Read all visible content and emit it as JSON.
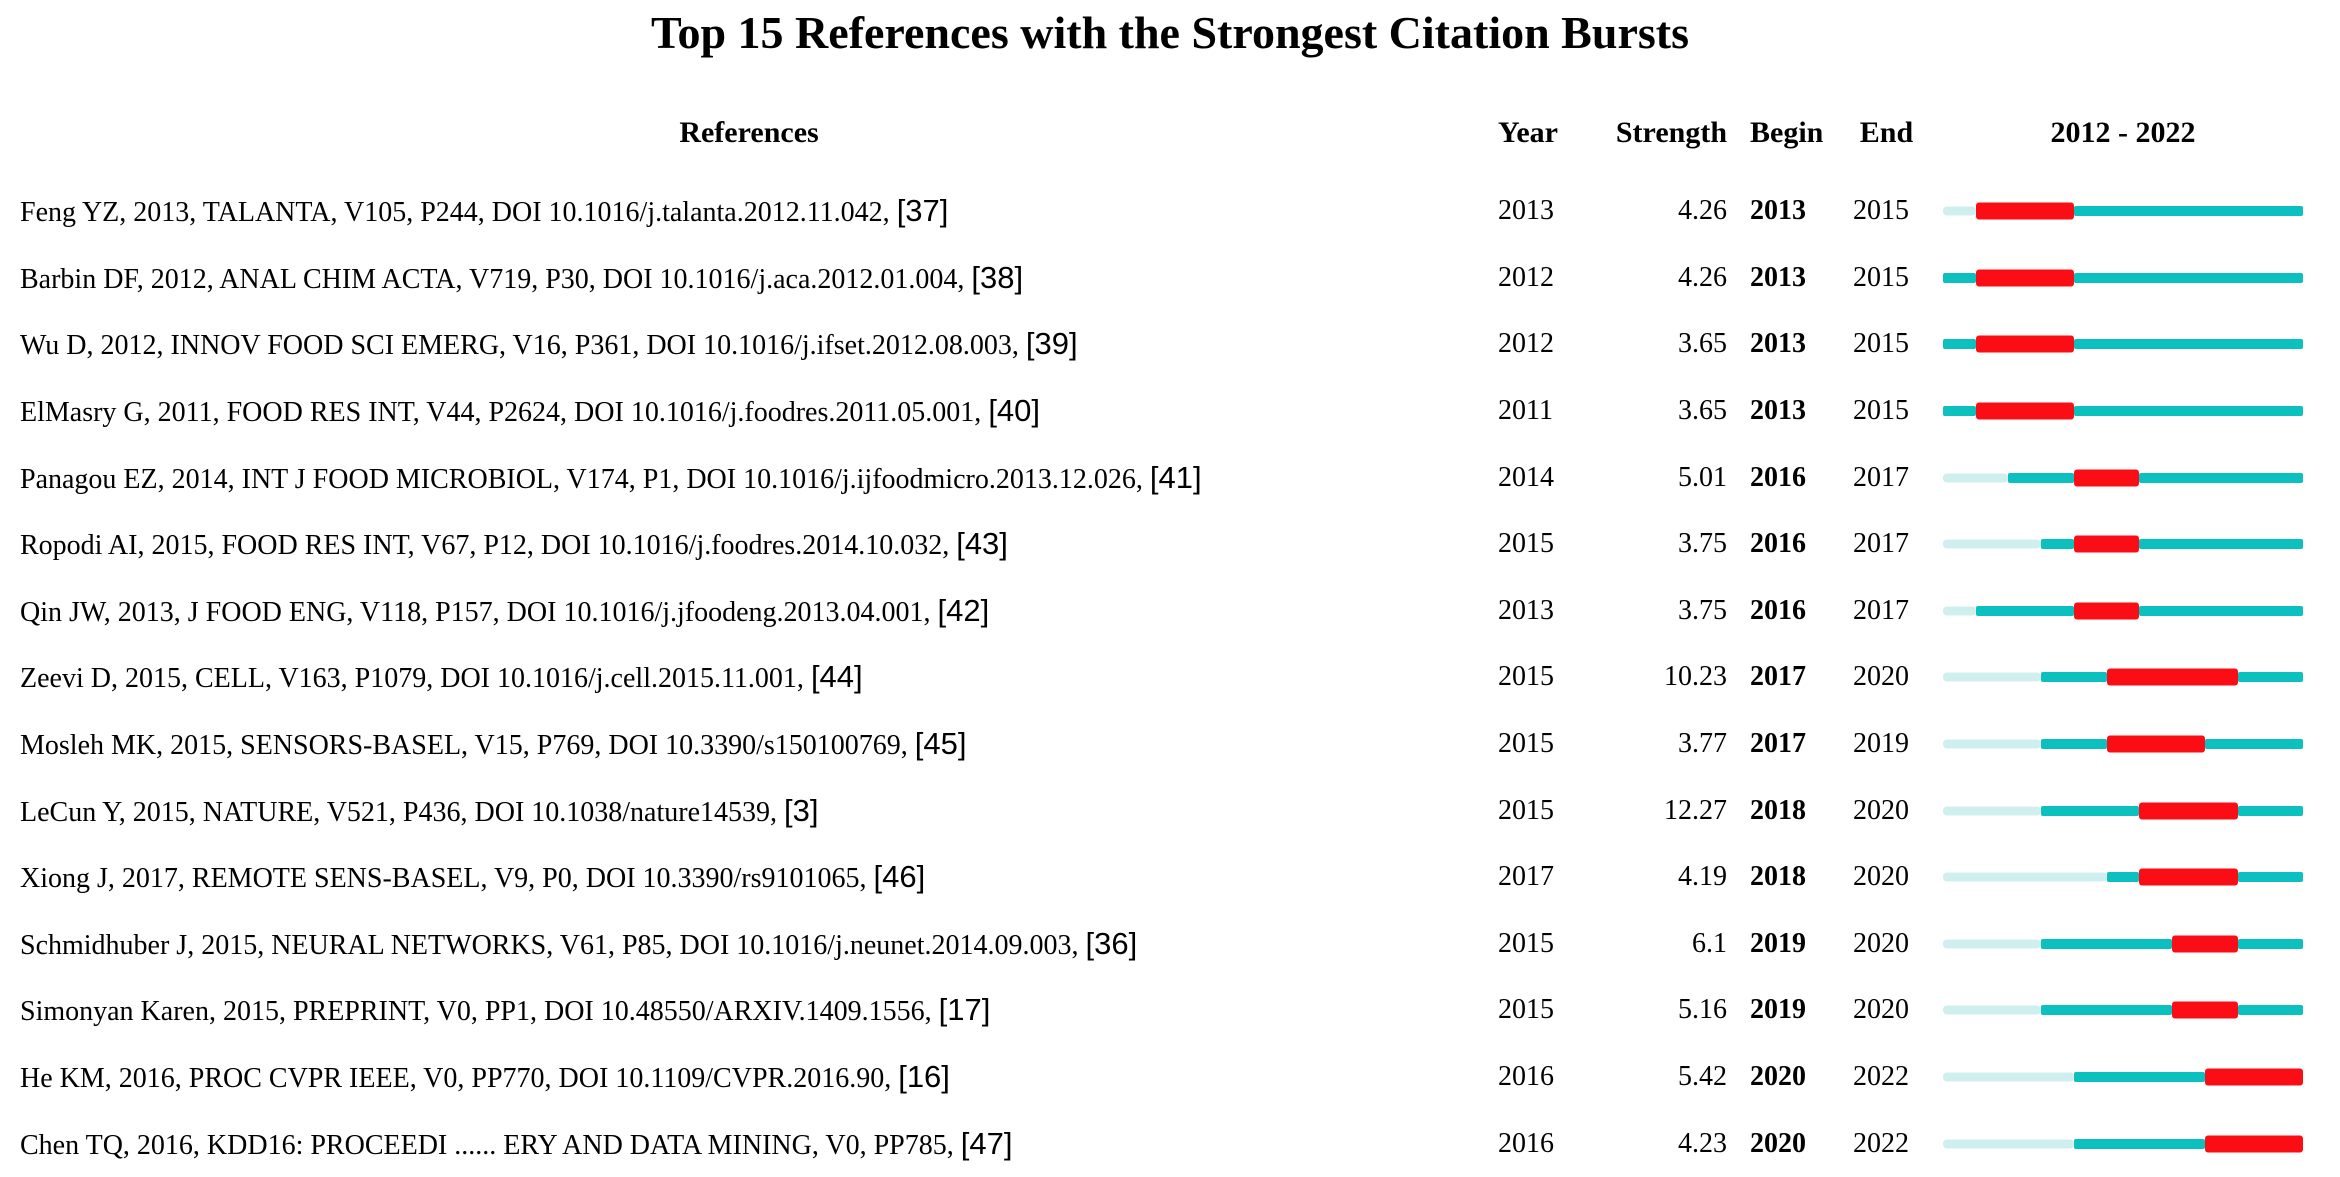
{
  "title": "Top 15 References with the Strongest Citation Bursts",
  "columns": {
    "references": "References",
    "year": "Year",
    "strength": "Strength",
    "begin": "Begin",
    "end": "End",
    "timeline": "2012 - 2022"
  },
  "colors": {
    "burst": "#fb0d15",
    "active": "#0cc0c0",
    "pre_publication": "#cfeeee"
  },
  "chart_data": {
    "type": "table",
    "title": "Top 15 References with the Strongest Citation Bursts",
    "timeline_range": [
      2012,
      2022
    ],
    "legend": {
      "burst_years_color": "#fb0d15",
      "post_publication_color": "#0cc0c0",
      "pre_publication_color": "#cfeeee"
    },
    "rows": [
      {
        "reference": "Feng YZ, 2013, TALANTA, V105, P244, DOI 10.1016/j.talanta.2012.11.042,",
        "cite": "[37]",
        "year": 2013,
        "strength": "4.26",
        "begin": 2013,
        "end": 2015
      },
      {
        "reference": "Barbin DF, 2012, ANAL CHIM ACTA, V719, P30, DOI 10.1016/j.aca.2012.01.004,",
        "cite": "[38]",
        "year": 2012,
        "strength": "4.26",
        "begin": 2013,
        "end": 2015
      },
      {
        "reference": "Wu D, 2012, INNOV FOOD SCI EMERG, V16, P361, DOI 10.1016/j.ifset.2012.08.003,",
        "cite": "[39]",
        "year": 2012,
        "strength": "3.65",
        "begin": 2013,
        "end": 2015
      },
      {
        "reference": "ElMasry G, 2011, FOOD RES INT, V44, P2624, DOI 10.1016/j.foodres.2011.05.001,",
        "cite": "[40]",
        "year": 2011,
        "strength": "3.65",
        "begin": 2013,
        "end": 2015
      },
      {
        "reference": "Panagou EZ, 2014, INT J FOOD MICROBIOL, V174, P1, DOI 10.1016/j.ijfoodmicro.2013.12.026,",
        "cite": "[41]",
        "year": 2014,
        "strength": "5.01",
        "begin": 2016,
        "end": 2017
      },
      {
        "reference": "Ropodi AI, 2015, FOOD RES INT, V67, P12, DOI 10.1016/j.foodres.2014.10.032,",
        "cite": "[43]",
        "year": 2015,
        "strength": "3.75",
        "begin": 2016,
        "end": 2017
      },
      {
        "reference": "Qin JW, 2013, J FOOD ENG, V118, P157, DOI 10.1016/j.jfoodeng.2013.04.001,",
        "cite": "[42]",
        "year": 2013,
        "strength": "3.75",
        "begin": 2016,
        "end": 2017
      },
      {
        "reference": "Zeevi D, 2015, CELL, V163, P1079, DOI 10.1016/j.cell.2015.11.001,",
        "cite": "[44]",
        "year": 2015,
        "strength": "10.23",
        "begin": 2017,
        "end": 2020
      },
      {
        "reference": "Mosleh MK, 2015, SENSORS-BASEL, V15, P769, DOI 10.3390/s150100769,",
        "cite": "[45]",
        "year": 2015,
        "strength": "3.77",
        "begin": 2017,
        "end": 2019
      },
      {
        "reference": "LeCun Y, 2015, NATURE, V521, P436, DOI 10.1038/nature14539,",
        "cite": "[3]",
        "year": 2015,
        "strength": "12.27",
        "begin": 2018,
        "end": 2020
      },
      {
        "reference": "Xiong J, 2017, REMOTE SENS-BASEL, V9, P0, DOI 10.3390/rs9101065,",
        "cite": "[46]",
        "year": 2017,
        "strength": "4.19",
        "begin": 2018,
        "end": 2020
      },
      {
        "reference": "Schmidhuber J, 2015, NEURAL NETWORKS, V61, P85, DOI 10.1016/j.neunet.2014.09.003,",
        "cite": "[36]",
        "year": 2015,
        "strength": "6.1",
        "begin": 2019,
        "end": 2020
      },
      {
        "reference": "Simonyan Karen, 2015, PREPRINT, V0, PP1, DOI 10.48550/ARXIV.1409.1556,",
        "cite": "[17]",
        "year": 2015,
        "strength": "5.16",
        "begin": 2019,
        "end": 2020
      },
      {
        "reference": "He KM, 2016, PROC CVPR IEEE, V0, PP770, DOI 10.1109/CVPR.2016.90,",
        "cite": "[16]",
        "year": 2016,
        "strength": "5.42",
        "begin": 2020,
        "end": 2022
      },
      {
        "reference": "Chen TQ, 2016, KDD16: PROCEEDI ...... ERY AND DATA MINING, V0, PP785,",
        "cite": "[47]",
        "year": 2016,
        "strength": "4.23",
        "begin": 2020,
        "end": 2022
      }
    ]
  }
}
